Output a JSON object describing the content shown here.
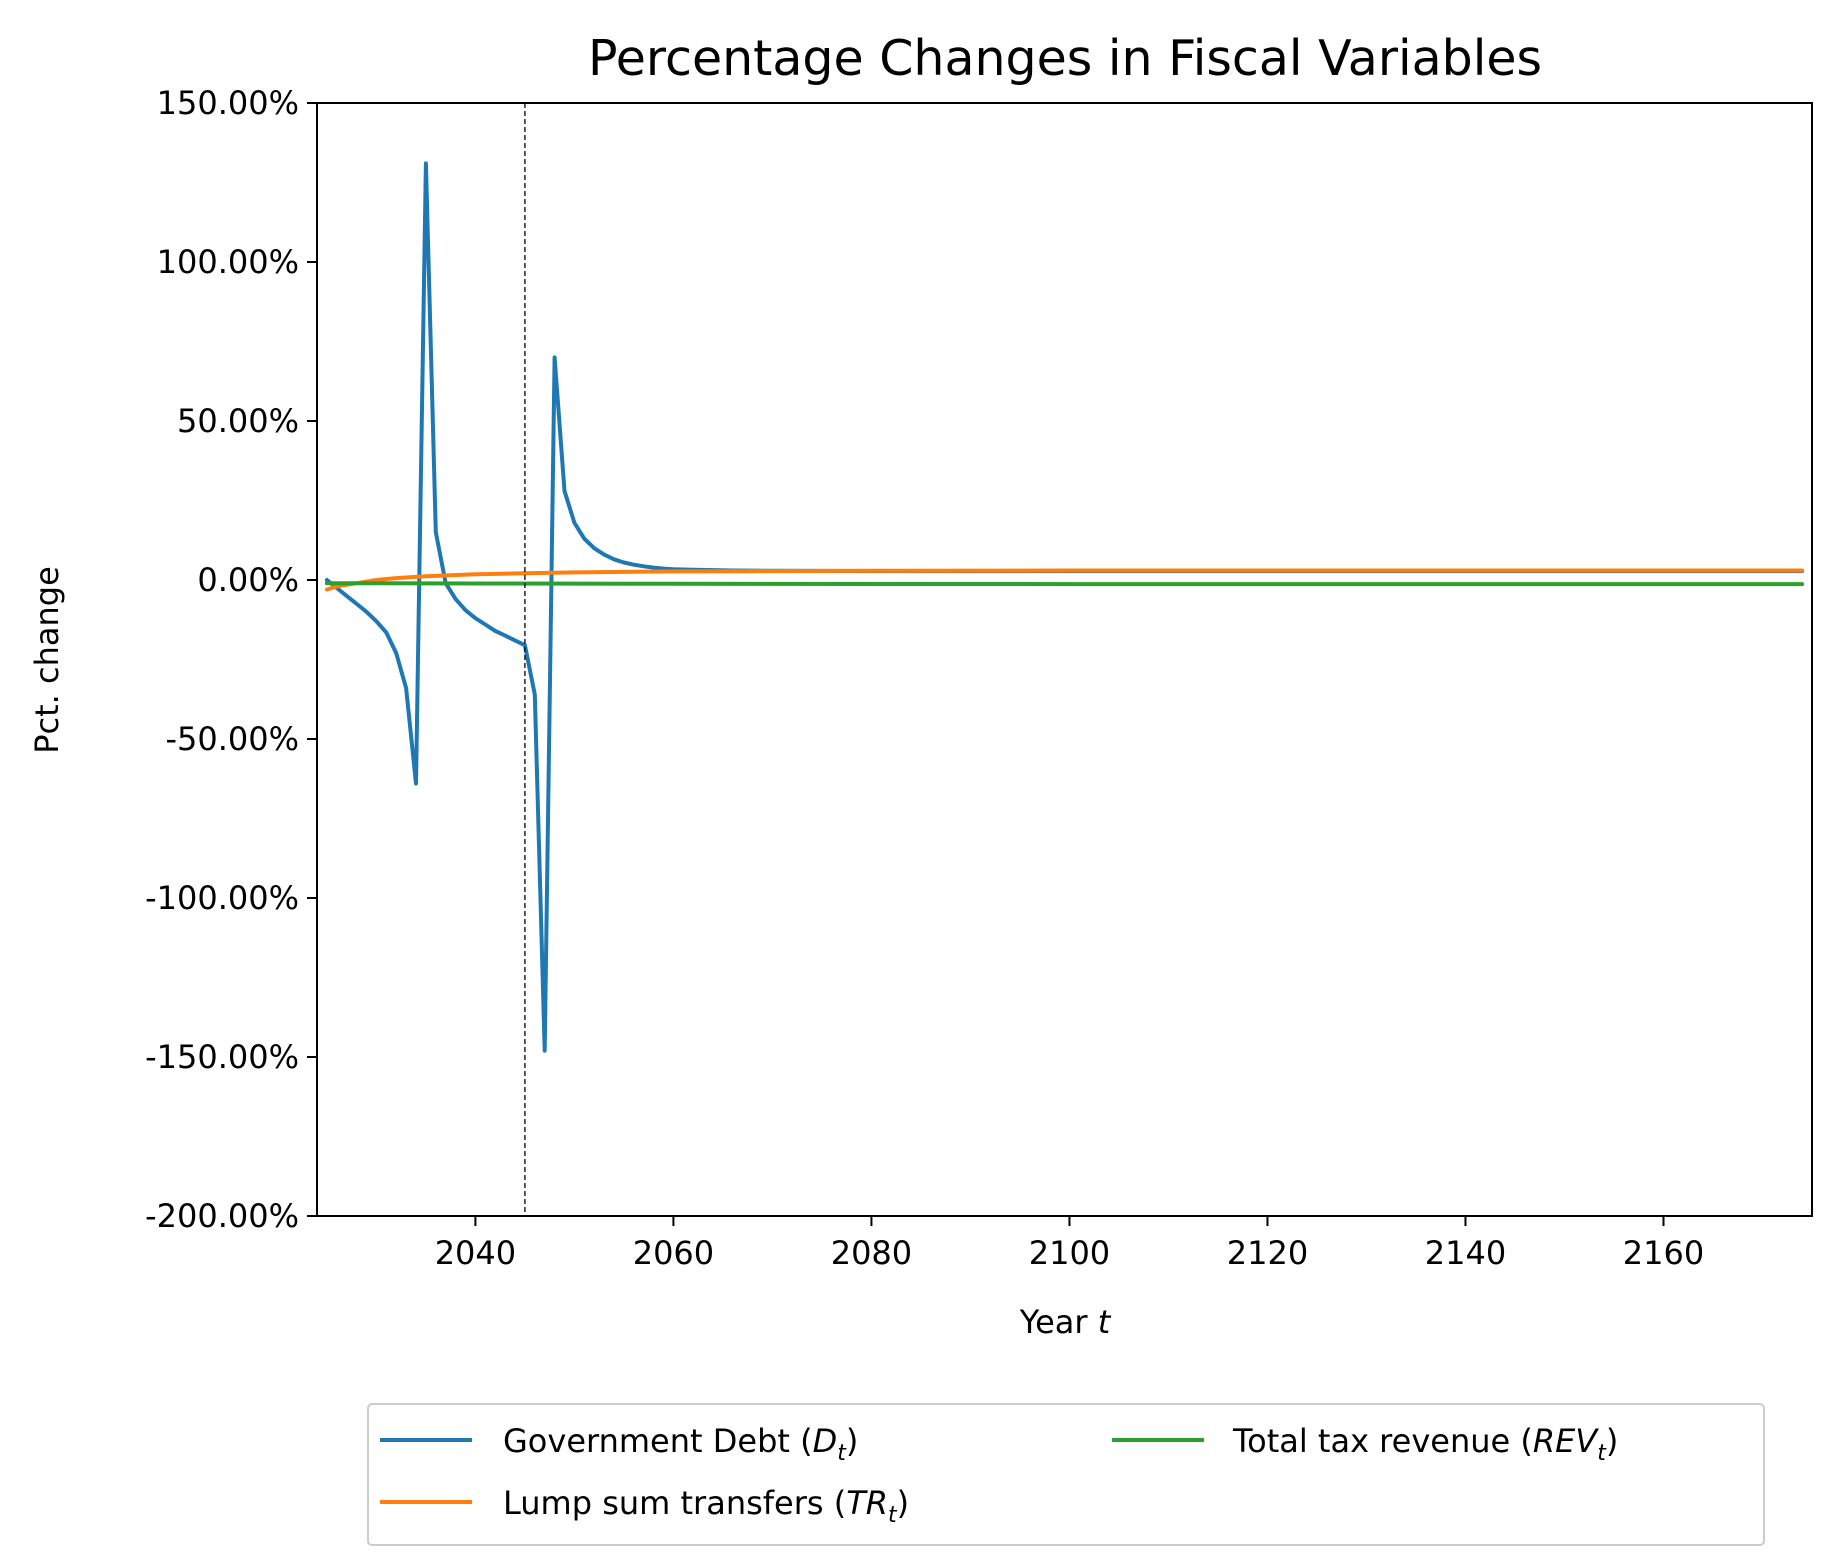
{
  "chart_data": {
    "type": "line",
    "title": "Percentage Changes in Fiscal Variables",
    "xlabel": "Year",
    "xlabel_var": "t",
    "ylabel": "Pct. change",
    "xlim": [
      2024,
      2175
    ],
    "ylim": [
      -200,
      150
    ],
    "x_ticks": [
      2040,
      2060,
      2080,
      2100,
      2120,
      2140,
      2160
    ],
    "y_ticks": [
      150,
      100,
      50,
      0,
      -50,
      -100,
      -150,
      -200
    ],
    "y_tick_labels": [
      "150.00%",
      "100.00%",
      "50.00%",
      "0.00%",
      "-50.00%",
      "-100.00%",
      "-150.00%",
      "-200.00%"
    ],
    "vline_x": 2045,
    "grid": false,
    "legend_placement": "below plot, two columns",
    "series": [
      {
        "name": "Government Debt",
        "legend_prefix": "Government Debt (",
        "legend_var": "D",
        "legend_sub": "t",
        "legend_suffix": ")",
        "color": "#1f77b4",
        "x": [
          2025,
          2026,
          2027,
          2028,
          2029,
          2030,
          2031,
          2032,
          2033,
          2034,
          2035,
          2036,
          2037,
          2038,
          2039,
          2040,
          2041,
          2042,
          2043,
          2044,
          2045,
          2046,
          2047,
          2048,
          2049,
          2050,
          2051,
          2052,
          2053,
          2054,
          2055,
          2056,
          2057,
          2058,
          2059,
          2060,
          2062,
          2064,
          2066,
          2068,
          2070,
          2075,
          2080,
          2090,
          2100,
          2110,
          2120,
          2140,
          2160,
          2174
        ],
        "y": [
          0,
          -2.5,
          -5,
          -7.5,
          -10,
          -13,
          -16.5,
          -23,
          -34,
          -64,
          131,
          15,
          -1,
          -6,
          -9.5,
          -12,
          -14,
          -16,
          -17.5,
          -19,
          -20.5,
          -36,
          -148,
          70,
          28,
          18,
          13,
          10,
          8,
          6.5,
          5.5,
          4.8,
          4.3,
          3.9,
          3.6,
          3.4,
          3.2,
          3.1,
          3.0,
          2.95,
          2.9,
          2.85,
          2.8,
          2.8,
          2.8,
          2.8,
          2.8,
          2.8,
          2.8,
          2.8
        ]
      },
      {
        "name": "Lump sum transfers",
        "legend_prefix": "Lump sum transfers (",
        "legend_var": "TR",
        "legend_sub": "t",
        "legend_suffix": ")",
        "color": "#ff7f0e",
        "x": [
          2025,
          2026,
          2028,
          2030,
          2032,
          2035,
          2040,
          2045,
          2050,
          2060,
          2080,
          2100,
          2174
        ],
        "y": [
          -3,
          -2,
          -1,
          0,
          0.6,
          1.2,
          1.8,
          2.1,
          2.4,
          2.7,
          2.9,
          3.0,
          3.0
        ]
      },
      {
        "name": "Total tax revenue",
        "legend_prefix": "Total tax revenue (",
        "legend_var": "REV",
        "legend_sub": "t",
        "legend_suffix": ")",
        "color": "#2ca02c",
        "x": [
          2025,
          2030,
          2040,
          2060,
          2100,
          2174
        ],
        "y": [
          -1.0,
          -1.0,
          -1.1,
          -1.2,
          -1.3,
          -1.3
        ]
      }
    ]
  }
}
